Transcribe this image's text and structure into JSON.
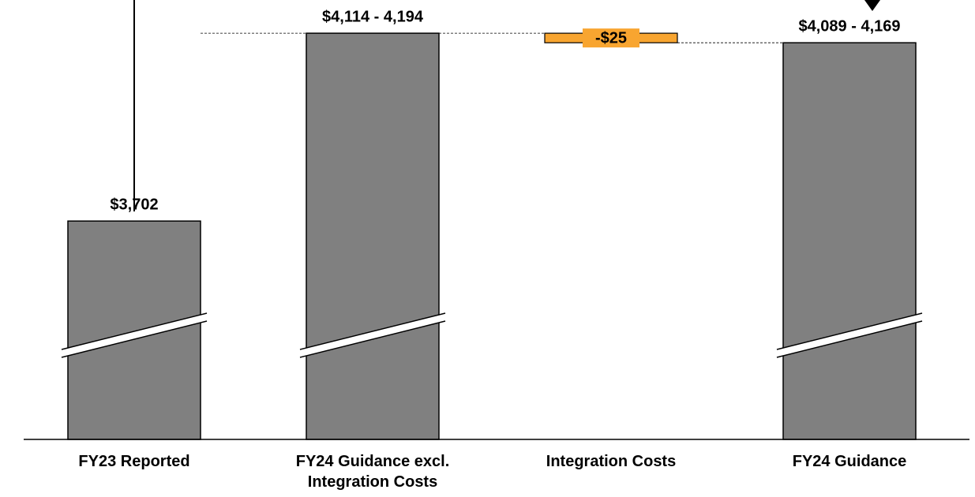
{
  "chart_data": {
    "type": "waterfall",
    "categories": [
      "FY23 Reported",
      "FY24 Guidance excl. Integration Costs",
      "Integration Costs",
      "FY24 Guidance"
    ],
    "values": [
      3702,
      [
        4114,
        4194
      ],
      -25,
      [
        4089,
        4169
      ]
    ],
    "value_labels": [
      "$3,702",
      "$4,114 - 4,194",
      "-$25",
      "$4,089 - 4,169"
    ],
    "kinds": [
      "total",
      "total",
      "delta",
      "total"
    ],
    "colors": [
      "#808080",
      "#808080",
      "#f8a530",
      "#808080"
    ],
    "ylim": [
      3130,
      4281
    ]
  }
}
